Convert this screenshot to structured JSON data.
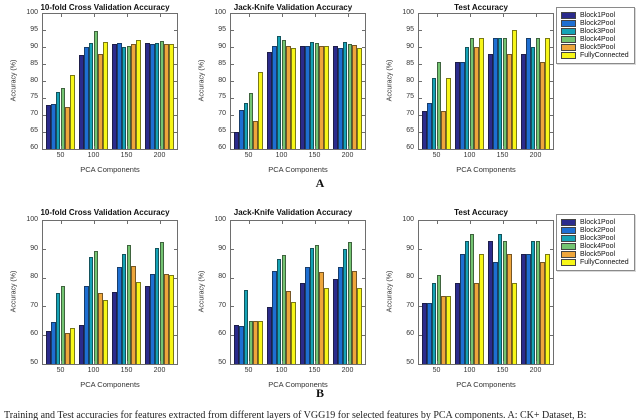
{
  "figure": {
    "section_labels": {
      "a": "A",
      "b": "B"
    },
    "caption": "Training and Test accuracies for features extracted from different layers of VGG19 for selected features by PCA components. A: CK+ Dataset, B:"
  },
  "legend": {
    "items": [
      {
        "label": "Block1Pool",
        "color": "#2B2B8C"
      },
      {
        "label": "Block2Pool",
        "color": "#1E6FD2"
      },
      {
        "label": "Block3Pool",
        "color": "#16A3B6"
      },
      {
        "label": "Block4Pool",
        "color": "#74C472"
      },
      {
        "label": "Block5Pool",
        "color": "#EEA63C"
      },
      {
        "label": "FullyConnected",
        "color": "#F7F618"
      }
    ]
  },
  "chart_data": [
    {
      "type": "bar",
      "title": "10-fold Cross Validation Accuracy",
      "xlabel": "PCA Components",
      "ylabel": "Accuracy (%)",
      "categories": [
        "50",
        "100",
        "150",
        "200"
      ],
      "ylim": [
        60,
        100
      ],
      "yticks": [
        60,
        65,
        70,
        75,
        80,
        85,
        90,
        95,
        100
      ],
      "grid": false,
      "legend_position": "outside-right",
      "series": [
        {
          "name": "Block1Pool",
          "color": "#2B2B8C",
          "values": [
            73.0,
            87.8,
            91.0,
            91.3
          ]
        },
        {
          "name": "Block2Pool",
          "color": "#1E6FD2",
          "values": [
            73.2,
            90.3,
            91.5,
            91.0
          ]
        },
        {
          "name": "Block3Pool",
          "color": "#16A3B6",
          "values": [
            77.0,
            91.5,
            90.2,
            91.3
          ]
        },
        {
          "name": "Block4Pool",
          "color": "#74C472",
          "values": [
            78.0,
            95.0,
            90.5,
            92.0
          ]
        },
        {
          "name": "Block5Pool",
          "color": "#EEA63C",
          "values": [
            72.5,
            88.2,
            91.2,
            91.2
          ]
        },
        {
          "name": "FullyConnected",
          "color": "#F7F618",
          "values": [
            81.8,
            91.8,
            92.3,
            91.0
          ]
        }
      ]
    },
    {
      "type": "bar",
      "title": "Jack-Knife Validation Accuracy",
      "xlabel": "PCA Components",
      "ylabel": "Accuracy (%)",
      "categories": [
        "50",
        "100",
        "150",
        "200"
      ],
      "ylim": [
        60,
        100
      ],
      "yticks": [
        60,
        65,
        70,
        75,
        80,
        85,
        90,
        95,
        100
      ],
      "grid": false,
      "series": [
        {
          "name": "Block1Pool",
          "color": "#2B2B8C",
          "values": [
            65.0,
            88.7,
            90.5,
            90.5
          ]
        },
        {
          "name": "Block2Pool",
          "color": "#1E6FD2",
          "values": [
            71.5,
            90.5,
            90.5,
            90.0
          ]
        },
        {
          "name": "Block3Pool",
          "color": "#16A3B6",
          "values": [
            73.5,
            93.5,
            91.7,
            91.7
          ]
        },
        {
          "name": "Block4Pool",
          "color": "#74C472",
          "values": [
            76.7,
            92.2,
            91.3,
            91.0
          ]
        },
        {
          "name": "Block5Pool",
          "color": "#EEA63C",
          "values": [
            68.3,
            90.5,
            90.5,
            90.8
          ]
        },
        {
          "name": "FullyConnected",
          "color": "#F7F618",
          "values": [
            82.8,
            90.0,
            90.5,
            90.0
          ]
        }
      ]
    },
    {
      "type": "bar",
      "title": "Test Accuracy",
      "xlabel": "PCA Components",
      "ylabel": "Accuracy (%)",
      "categories": [
        "50",
        "100",
        "150",
        "200"
      ],
      "ylim": [
        60,
        100
      ],
      "yticks": [
        60,
        65,
        70,
        75,
        80,
        85,
        90,
        95,
        100
      ],
      "grid": false,
      "series": [
        {
          "name": "Block1Pool",
          "color": "#2B2B8C",
          "values": [
            71.4,
            85.8,
            88.1,
            88.1
          ]
        },
        {
          "name": "Block2Pool",
          "color": "#1E6FD2",
          "values": [
            73.7,
            85.8,
            92.8,
            92.8
          ]
        },
        {
          "name": "Block3Pool",
          "color": "#16A3B6",
          "values": [
            81.0,
            90.3,
            92.8,
            90.3
          ]
        },
        {
          "name": "Block4Pool",
          "color": "#74C472",
          "values": [
            85.7,
            92.8,
            92.8,
            92.8
          ]
        },
        {
          "name": "Block5Pool",
          "color": "#EEA63C",
          "values": [
            71.4,
            90.3,
            88.1,
            85.8
          ]
        },
        {
          "name": "FullyConnected",
          "color": "#F7F618",
          "values": [
            81.0,
            92.8,
            95.2,
            92.8
          ]
        }
      ]
    },
    {
      "type": "bar",
      "title": "10-fold Cross Validation Accuracy",
      "xlabel": "PCA Components",
      "ylabel": "Accuracy (%)",
      "categories": [
        "50",
        "100",
        "150",
        "200"
      ],
      "ylim": [
        50,
        100
      ],
      "yticks": [
        50,
        60,
        70,
        80,
        90,
        100
      ],
      "grid": false,
      "series": [
        {
          "name": "Block1Pool",
          "color": "#2B2B8C",
          "values": [
            61.5,
            63.8,
            75.2,
            77.3
          ]
        },
        {
          "name": "Block2Pool",
          "color": "#1E6FD2",
          "values": [
            64.8,
            77.3,
            83.8,
            81.5
          ]
        },
        {
          "name": "Block3Pool",
          "color": "#16A3B6",
          "values": [
            74.7,
            87.5,
            88.4,
            90.5
          ]
        },
        {
          "name": "Block4Pool",
          "color": "#74C472",
          "values": [
            77.2,
            89.5,
            91.6,
            92.8
          ]
        },
        {
          "name": "Block5Pool",
          "color": "#EEA63C",
          "values": [
            61.0,
            74.8,
            84.2,
            81.3
          ]
        },
        {
          "name": "FullyConnected",
          "color": "#F7F618",
          "values": [
            62.5,
            72.3,
            78.6,
            81.1
          ]
        }
      ]
    },
    {
      "type": "bar",
      "title": "Jack-Knife Validation Accuracy",
      "xlabel": "PCA Components",
      "ylabel": "Accuracy (%)",
      "categories": [
        "50",
        "100",
        "150",
        "200"
      ],
      "ylim": [
        50,
        100
      ],
      "yticks": [
        50,
        60,
        70,
        80,
        90,
        100
      ],
      "grid": false,
      "series": [
        {
          "name": "Block1Pool",
          "color": "#2B2B8C",
          "values": [
            63.7,
            70.0,
            78.4,
            79.7
          ]
        },
        {
          "name": "Block2Pool",
          "color": "#1E6FD2",
          "values": [
            63.2,
            82.5,
            83.8,
            83.8
          ]
        },
        {
          "name": "Block3Pool",
          "color": "#16A3B6",
          "values": [
            76.0,
            86.7,
            90.6,
            90.2
          ]
        },
        {
          "name": "Block4Pool",
          "color": "#74C472",
          "values": [
            65.0,
            88.0,
            91.7,
            92.8
          ]
        },
        {
          "name": "Block5Pool",
          "color": "#EEA63C",
          "values": [
            65.0,
            75.5,
            82.0,
            82.4
          ]
        },
        {
          "name": "FullyConnected",
          "color": "#F7F618",
          "values": [
            65.0,
            71.7,
            76.7,
            76.6
          ]
        }
      ]
    },
    {
      "type": "bar",
      "title": "Test Accuracy",
      "xlabel": "PCA Components",
      "ylabel": "Accuracy (%)",
      "categories": [
        "50",
        "100",
        "150",
        "200"
      ],
      "ylim": [
        50,
        100
      ],
      "yticks": [
        50,
        60,
        70,
        80,
        90,
        100
      ],
      "grid": false,
      "series": [
        {
          "name": "Block1Pool",
          "color": "#2B2B8C",
          "values": [
            71.4,
            78.5,
            93.0,
            88.3
          ]
        },
        {
          "name": "Block2Pool",
          "color": "#1E6FD2",
          "values": [
            71.4,
            88.3,
            85.7,
            88.3
          ]
        },
        {
          "name": "Block3Pool",
          "color": "#16A3B6",
          "values": [
            78.5,
            93.0,
            95.3,
            93.0
          ]
        },
        {
          "name": "Block4Pool",
          "color": "#74C472",
          "values": [
            81.0,
            95.3,
            93.0,
            93.0
          ]
        },
        {
          "name": "Block5Pool",
          "color": "#EEA63C",
          "values": [
            73.8,
            78.5,
            88.3,
            85.7
          ]
        },
        {
          "name": "FullyConnected",
          "color": "#F7F618",
          "values": [
            73.8,
            88.3,
            78.5,
            88.3
          ]
        }
      ]
    }
  ]
}
